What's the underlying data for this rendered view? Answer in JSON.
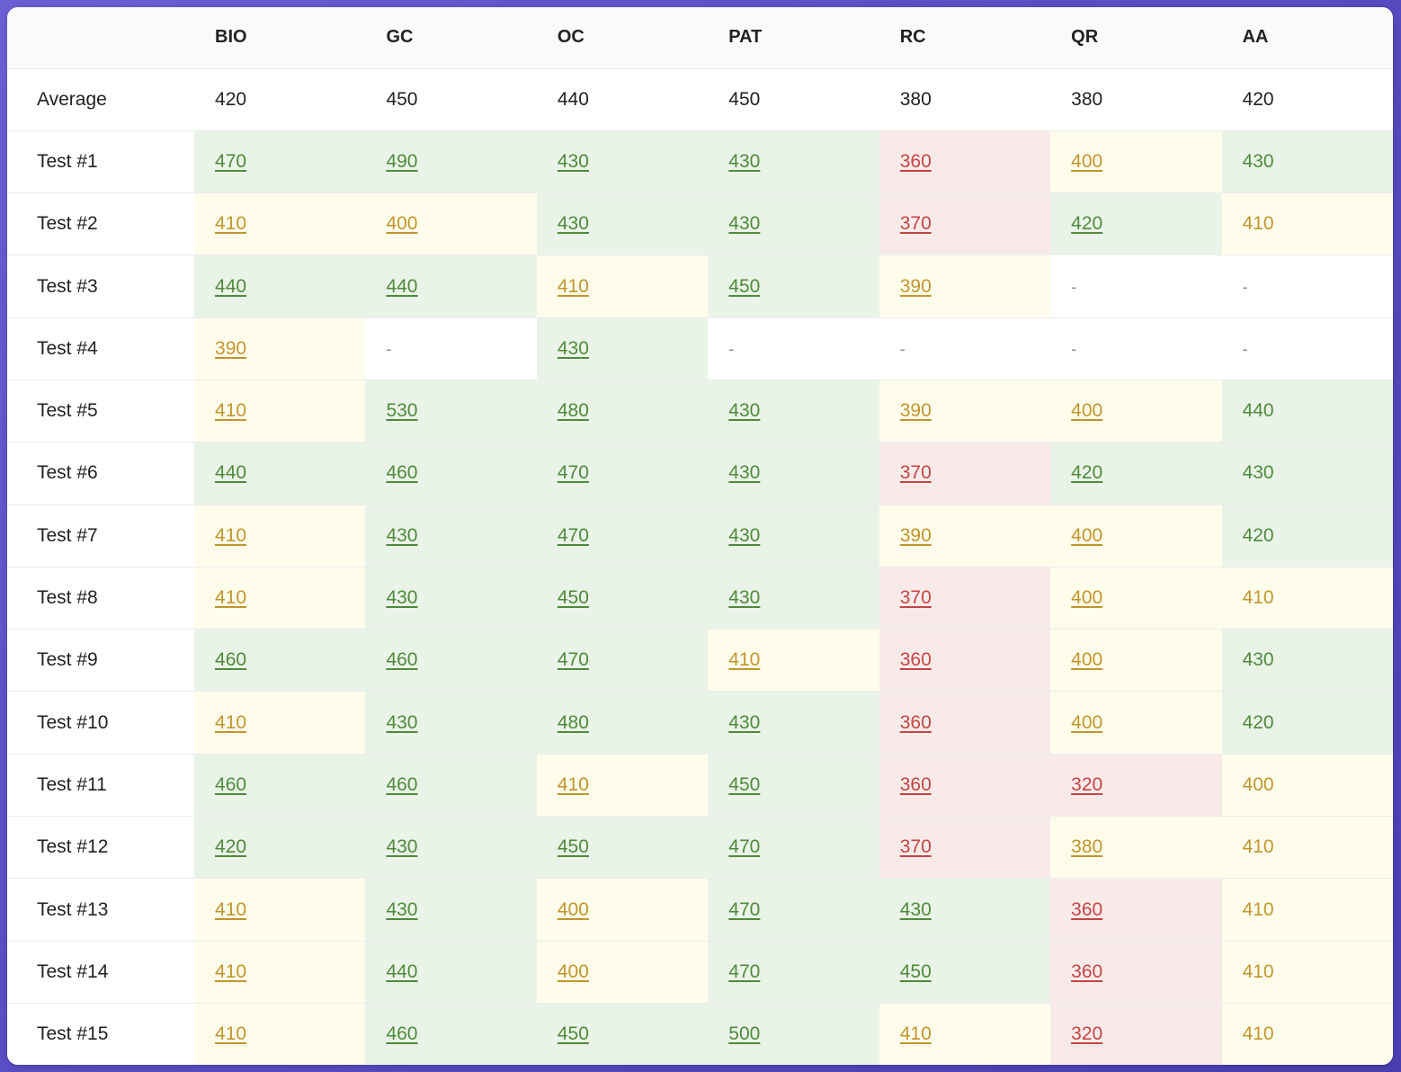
{
  "columns": [
    "BIO",
    "GC",
    "OC",
    "PAT",
    "RC",
    "QR",
    "AA"
  ],
  "average": {
    "label": "Average",
    "values": [
      "420",
      "450",
      "440",
      "450",
      "380",
      "380",
      "420"
    ]
  },
  "colors": {
    "good_bg": "#eaf3e7",
    "good_text": "#4f8a3c",
    "mid_bg": "#fefdec",
    "mid_text": "#c2952c",
    "bad_bg": "#f9eaea",
    "bad_text": "#c44545"
  },
  "rows": [
    {
      "label": "Test #1",
      "cells": [
        {
          "v": "470",
          "s": "good"
        },
        {
          "v": "490",
          "s": "good"
        },
        {
          "v": "430",
          "s": "good"
        },
        {
          "v": "430",
          "s": "good"
        },
        {
          "v": "360",
          "s": "bad"
        },
        {
          "v": "400",
          "s": "mid"
        },
        {
          "v": "430",
          "s": "good"
        }
      ]
    },
    {
      "label": "Test #2",
      "cells": [
        {
          "v": "410",
          "s": "mid"
        },
        {
          "v": "400",
          "s": "mid"
        },
        {
          "v": "430",
          "s": "good"
        },
        {
          "v": "430",
          "s": "good"
        },
        {
          "v": "370",
          "s": "bad"
        },
        {
          "v": "420",
          "s": "good"
        },
        {
          "v": "410",
          "s": "mid"
        }
      ]
    },
    {
      "label": "Test #3",
      "cells": [
        {
          "v": "440",
          "s": "good"
        },
        {
          "v": "440",
          "s": "good"
        },
        {
          "v": "410",
          "s": "mid"
        },
        {
          "v": "450",
          "s": "good"
        },
        {
          "v": "390",
          "s": "mid"
        },
        {
          "v": "-",
          "s": "none"
        },
        {
          "v": "-",
          "s": "none"
        }
      ]
    },
    {
      "label": "Test #4",
      "cells": [
        {
          "v": "390",
          "s": "mid"
        },
        {
          "v": "-",
          "s": "none"
        },
        {
          "v": "430",
          "s": "good"
        },
        {
          "v": "-",
          "s": "none"
        },
        {
          "v": "-",
          "s": "none"
        },
        {
          "v": "-",
          "s": "none"
        },
        {
          "v": "-",
          "s": "none"
        }
      ]
    },
    {
      "label": "Test #5",
      "cells": [
        {
          "v": "410",
          "s": "mid"
        },
        {
          "v": "530",
          "s": "good"
        },
        {
          "v": "480",
          "s": "good"
        },
        {
          "v": "430",
          "s": "good"
        },
        {
          "v": "390",
          "s": "mid"
        },
        {
          "v": "400",
          "s": "mid"
        },
        {
          "v": "440",
          "s": "good"
        }
      ]
    },
    {
      "label": "Test #6",
      "cells": [
        {
          "v": "440",
          "s": "good"
        },
        {
          "v": "460",
          "s": "good"
        },
        {
          "v": "470",
          "s": "good"
        },
        {
          "v": "430",
          "s": "good"
        },
        {
          "v": "370",
          "s": "bad"
        },
        {
          "v": "420",
          "s": "good"
        },
        {
          "v": "430",
          "s": "good"
        }
      ]
    },
    {
      "label": "Test #7",
      "cells": [
        {
          "v": "410",
          "s": "mid"
        },
        {
          "v": "430",
          "s": "good"
        },
        {
          "v": "470",
          "s": "good"
        },
        {
          "v": "430",
          "s": "good"
        },
        {
          "v": "390",
          "s": "mid"
        },
        {
          "v": "400",
          "s": "mid"
        },
        {
          "v": "420",
          "s": "good"
        }
      ]
    },
    {
      "label": "Test #8",
      "cells": [
        {
          "v": "410",
          "s": "mid"
        },
        {
          "v": "430",
          "s": "good"
        },
        {
          "v": "450",
          "s": "good"
        },
        {
          "v": "430",
          "s": "good"
        },
        {
          "v": "370",
          "s": "bad"
        },
        {
          "v": "400",
          "s": "mid"
        },
        {
          "v": "410",
          "s": "mid"
        }
      ]
    },
    {
      "label": "Test #9",
      "cells": [
        {
          "v": "460",
          "s": "good"
        },
        {
          "v": "460",
          "s": "good"
        },
        {
          "v": "470",
          "s": "good"
        },
        {
          "v": "410",
          "s": "mid"
        },
        {
          "v": "360",
          "s": "bad"
        },
        {
          "v": "400",
          "s": "mid"
        },
        {
          "v": "430",
          "s": "good"
        }
      ]
    },
    {
      "label": "Test #10",
      "cells": [
        {
          "v": "410",
          "s": "mid"
        },
        {
          "v": "430",
          "s": "good"
        },
        {
          "v": "480",
          "s": "good"
        },
        {
          "v": "430",
          "s": "good"
        },
        {
          "v": "360",
          "s": "bad"
        },
        {
          "v": "400",
          "s": "mid"
        },
        {
          "v": "420",
          "s": "good"
        }
      ]
    },
    {
      "label": "Test #11",
      "cells": [
        {
          "v": "460",
          "s": "good"
        },
        {
          "v": "460",
          "s": "good"
        },
        {
          "v": "410",
          "s": "mid"
        },
        {
          "v": "450",
          "s": "good"
        },
        {
          "v": "360",
          "s": "bad"
        },
        {
          "v": "320",
          "s": "bad"
        },
        {
          "v": "400",
          "s": "mid"
        }
      ]
    },
    {
      "label": "Test #12",
      "cells": [
        {
          "v": "420",
          "s": "good"
        },
        {
          "v": "430",
          "s": "good"
        },
        {
          "v": "450",
          "s": "good"
        },
        {
          "v": "470",
          "s": "good"
        },
        {
          "v": "370",
          "s": "bad"
        },
        {
          "v": "380",
          "s": "mid"
        },
        {
          "v": "410",
          "s": "mid"
        }
      ]
    },
    {
      "label": "Test #13",
      "cells": [
        {
          "v": "410",
          "s": "mid"
        },
        {
          "v": "430",
          "s": "good"
        },
        {
          "v": "400",
          "s": "mid"
        },
        {
          "v": "470",
          "s": "good"
        },
        {
          "v": "430",
          "s": "good"
        },
        {
          "v": "360",
          "s": "bad"
        },
        {
          "v": "410",
          "s": "mid"
        }
      ]
    },
    {
      "label": "Test #14",
      "cells": [
        {
          "v": "410",
          "s": "mid"
        },
        {
          "v": "440",
          "s": "good"
        },
        {
          "v": "400",
          "s": "mid"
        },
        {
          "v": "470",
          "s": "good"
        },
        {
          "v": "450",
          "s": "good"
        },
        {
          "v": "360",
          "s": "bad"
        },
        {
          "v": "410",
          "s": "mid"
        }
      ]
    },
    {
      "label": "Test #15",
      "cells": [
        {
          "v": "410",
          "s": "mid"
        },
        {
          "v": "460",
          "s": "good"
        },
        {
          "v": "450",
          "s": "good"
        },
        {
          "v": "500",
          "s": "good"
        },
        {
          "v": "410",
          "s": "mid"
        },
        {
          "v": "320",
          "s": "bad"
        },
        {
          "v": "410",
          "s": "mid"
        }
      ]
    }
  ]
}
